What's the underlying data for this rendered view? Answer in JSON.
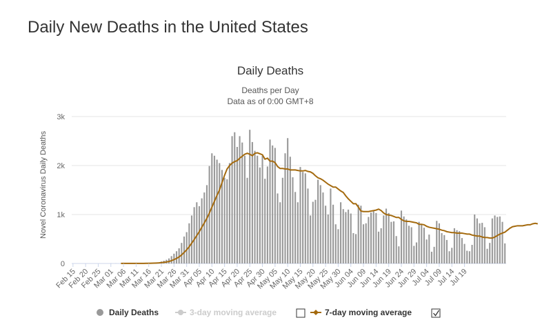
{
  "page": {
    "title": "Daily New Deaths in the United States"
  },
  "chart_data": {
    "type": "bar",
    "title": "Daily Deaths",
    "subtitle_line1": "Deaths per Day",
    "subtitle_line2": "Data as of 0:00 GMT+8",
    "xlabel": "",
    "ylabel": "Novel Coronavirus Daily Deaths",
    "ylim": [
      0,
      3000
    ],
    "y_ticks": [
      0,
      1000,
      2000,
      3000
    ],
    "y_tick_labels": [
      "0",
      "1k",
      "2k",
      "3k"
    ],
    "grid": true,
    "legend_position": "bottom",
    "start_date": "Feb 15",
    "x_tick_labels": [
      "Feb 15",
      "Feb 20",
      "Feb 25",
      "Mar 01",
      "Mar 06",
      "Mar 11",
      "Mar 16",
      "Mar 21",
      "Mar 26",
      "Mar 31",
      "Apr 05",
      "Apr 10",
      "Apr 15",
      "Apr 20",
      "Apr 25",
      "Apr 30",
      "May 05",
      "May 10",
      "May 15",
      "May 20",
      "May 25",
      "May 30",
      "Jun 04",
      "Jun 09",
      "Jun 14",
      "Jun 19",
      "Jun 24",
      "Jun 29",
      "Jul 04",
      "Jul 09",
      "Jul 14",
      "Jul 19"
    ],
    "series": [
      {
        "name": "Daily Deaths",
        "color": "#999999",
        "values": [
          0,
          0,
          0,
          0,
          0,
          0,
          0,
          0,
          0,
          0,
          0,
          0,
          0,
          0,
          0,
          1,
          0,
          1,
          0,
          1,
          0,
          1,
          1,
          1,
          1,
          1,
          2,
          3,
          5,
          7,
          9,
          10,
          12,
          17,
          22,
          40,
          56,
          75,
          103,
          150,
          200,
          250,
          310,
          420,
          550,
          640,
          820,
          980,
          1150,
          1250,
          1170,
          1330,
          1450,
          1600,
          1990,
          2250,
          2200,
          2120,
          2050,
          1910,
          1750,
          1720,
          2050,
          2600,
          2680,
          2380,
          2600,
          2470,
          2200,
          1750,
          2730,
          2480,
          2300,
          2200,
          1960,
          2200,
          1730,
          1980,
          2530,
          2410,
          2360,
          1430,
          1250,
          1750,
          2250,
          2560,
          2180,
          1760,
          1460,
          1250,
          1970,
          1870,
          1840,
          1530,
          980,
          1260,
          1300,
          1710,
          1600,
          1450,
          1180,
          1000,
          1530,
          1200,
          800,
          700,
          1250,
          1110,
          1050,
          1100,
          1020,
          620,
          600,
          1200,
          1180,
          800,
          820,
          950,
          1040,
          1080,
          1030,
          650,
          720,
          980,
          1120,
          1030,
          850,
          860,
          560,
          350,
          1080,
          960,
          900,
          770,
          740,
          360,
          430,
          850,
          800,
          730,
          490,
          590,
          240,
          340,
          870,
          820,
          620,
          580,
          480,
          250,
          320,
          720,
          680,
          660,
          520,
          400,
          260,
          250,
          380,
          1000,
          920,
          820,
          830,
          740,
          300,
          420,
          920,
          980,
          950,
          960,
          850,
          410
        ]
      },
      {
        "name": "3-day moving average",
        "color": "#cccccc",
        "hidden": true
      },
      {
        "name": "7-day moving average",
        "color": "#a46a0e",
        "values": [
          0,
          0,
          0,
          0,
          0,
          0,
          0,
          0,
          0,
          0,
          0,
          0,
          0,
          0,
          0,
          0,
          0,
          0,
          0,
          1,
          1,
          1,
          1,
          1,
          1,
          1,
          1,
          1,
          2,
          3,
          4,
          5,
          7,
          9,
          12,
          17,
          23,
          30,
          41,
          57,
          79,
          104,
          134,
          175,
          226,
          278,
          342,
          415,
          490,
          569,
          650,
          740,
          830,
          920,
          1030,
          1150,
          1270,
          1390,
          1500,
          1650,
          1800,
          1930,
          2000,
          2050,
          2080,
          2100,
          2150,
          2190,
          2230,
          2250,
          2230,
          2200,
          2250,
          2260,
          2240,
          2220,
          2130,
          2150,
          2090,
          2090,
          2060,
          1980,
          1940,
          1940,
          1930,
          1930,
          1910,
          1910,
          1910,
          1900,
          1890,
          1890,
          1900,
          1880,
          1870,
          1840,
          1790,
          1750,
          1730,
          1700,
          1660,
          1620,
          1590,
          1560,
          1560,
          1520,
          1480,
          1450,
          1380,
          1320,
          1270,
          1220,
          1220,
          1150,
          1070,
          1060,
          1060,
          1060,
          1070,
          1080,
          1090,
          1110,
          1080,
          1030,
          1000,
          990,
          980,
          960,
          940,
          940,
          900,
          870,
          860,
          860,
          850,
          840,
          830,
          800,
          800,
          790,
          760,
          740,
          730,
          720,
          710,
          700,
          680,
          670,
          650,
          640,
          630,
          630,
          620,
          620,
          620,
          610,
          600,
          600,
          580,
          570,
          560,
          560,
          540,
          530,
          530,
          520,
          520,
          540,
          570,
          600,
          620,
          640,
          680,
          720,
          750,
          760,
          770,
          770,
          770,
          780,
          790,
          790,
          810,
          820,
          810
        ]
      }
    ]
  },
  "legend": {
    "items": [
      {
        "label": "Daily Deaths",
        "color": "#999999",
        "enabled": true,
        "icon": "circle"
      },
      {
        "label": "3-day moving average",
        "color": "#cccccc",
        "enabled": false,
        "icon": "line-circle",
        "checkbox_checked": false
      },
      {
        "label": "7-day moving average",
        "color": "#a46a0e",
        "enabled": true,
        "icon": "line-diamond",
        "checkbox_checked": true
      }
    ]
  }
}
